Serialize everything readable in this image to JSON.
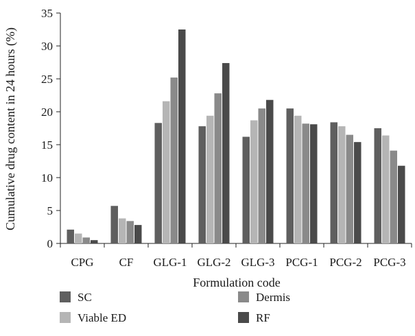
{
  "chart_data": {
    "type": "bar",
    "xlabel": "Formulation code",
    "ylabel": "Cumulative drug content in 24 hours (%)",
    "ylim": [
      0,
      35
    ],
    "yticks": [
      0,
      5,
      10,
      15,
      20,
      25,
      30,
      35
    ],
    "grid": false,
    "legend_position": "bottom",
    "categories": [
      "CPG",
      "CF",
      "GLG-1",
      "GLG-2",
      "GLG-3",
      "PCG-1",
      "PCG-2",
      "PCG-3"
    ],
    "series": [
      {
        "name": "SC",
        "color": "#5f5f5f",
        "values": [
          2.1,
          5.7,
          18.3,
          17.8,
          16.2,
          20.5,
          18.4,
          17.5
        ]
      },
      {
        "name": "Viable ED",
        "color": "#b5b5b5",
        "values": [
          1.5,
          3.8,
          21.6,
          19.4,
          18.7,
          19.4,
          17.8,
          16.4
        ]
      },
      {
        "name": "Dermis",
        "color": "#8a8a8a",
        "values": [
          0.9,
          3.4,
          25.2,
          22.8,
          20.5,
          18.2,
          16.5,
          14.1
        ]
      },
      {
        "name": "RF",
        "color": "#4a4a4a",
        "values": [
          0.5,
          2.8,
          32.5,
          27.4,
          21.8,
          18.1,
          15.4,
          11.8
        ]
      }
    ]
  }
}
